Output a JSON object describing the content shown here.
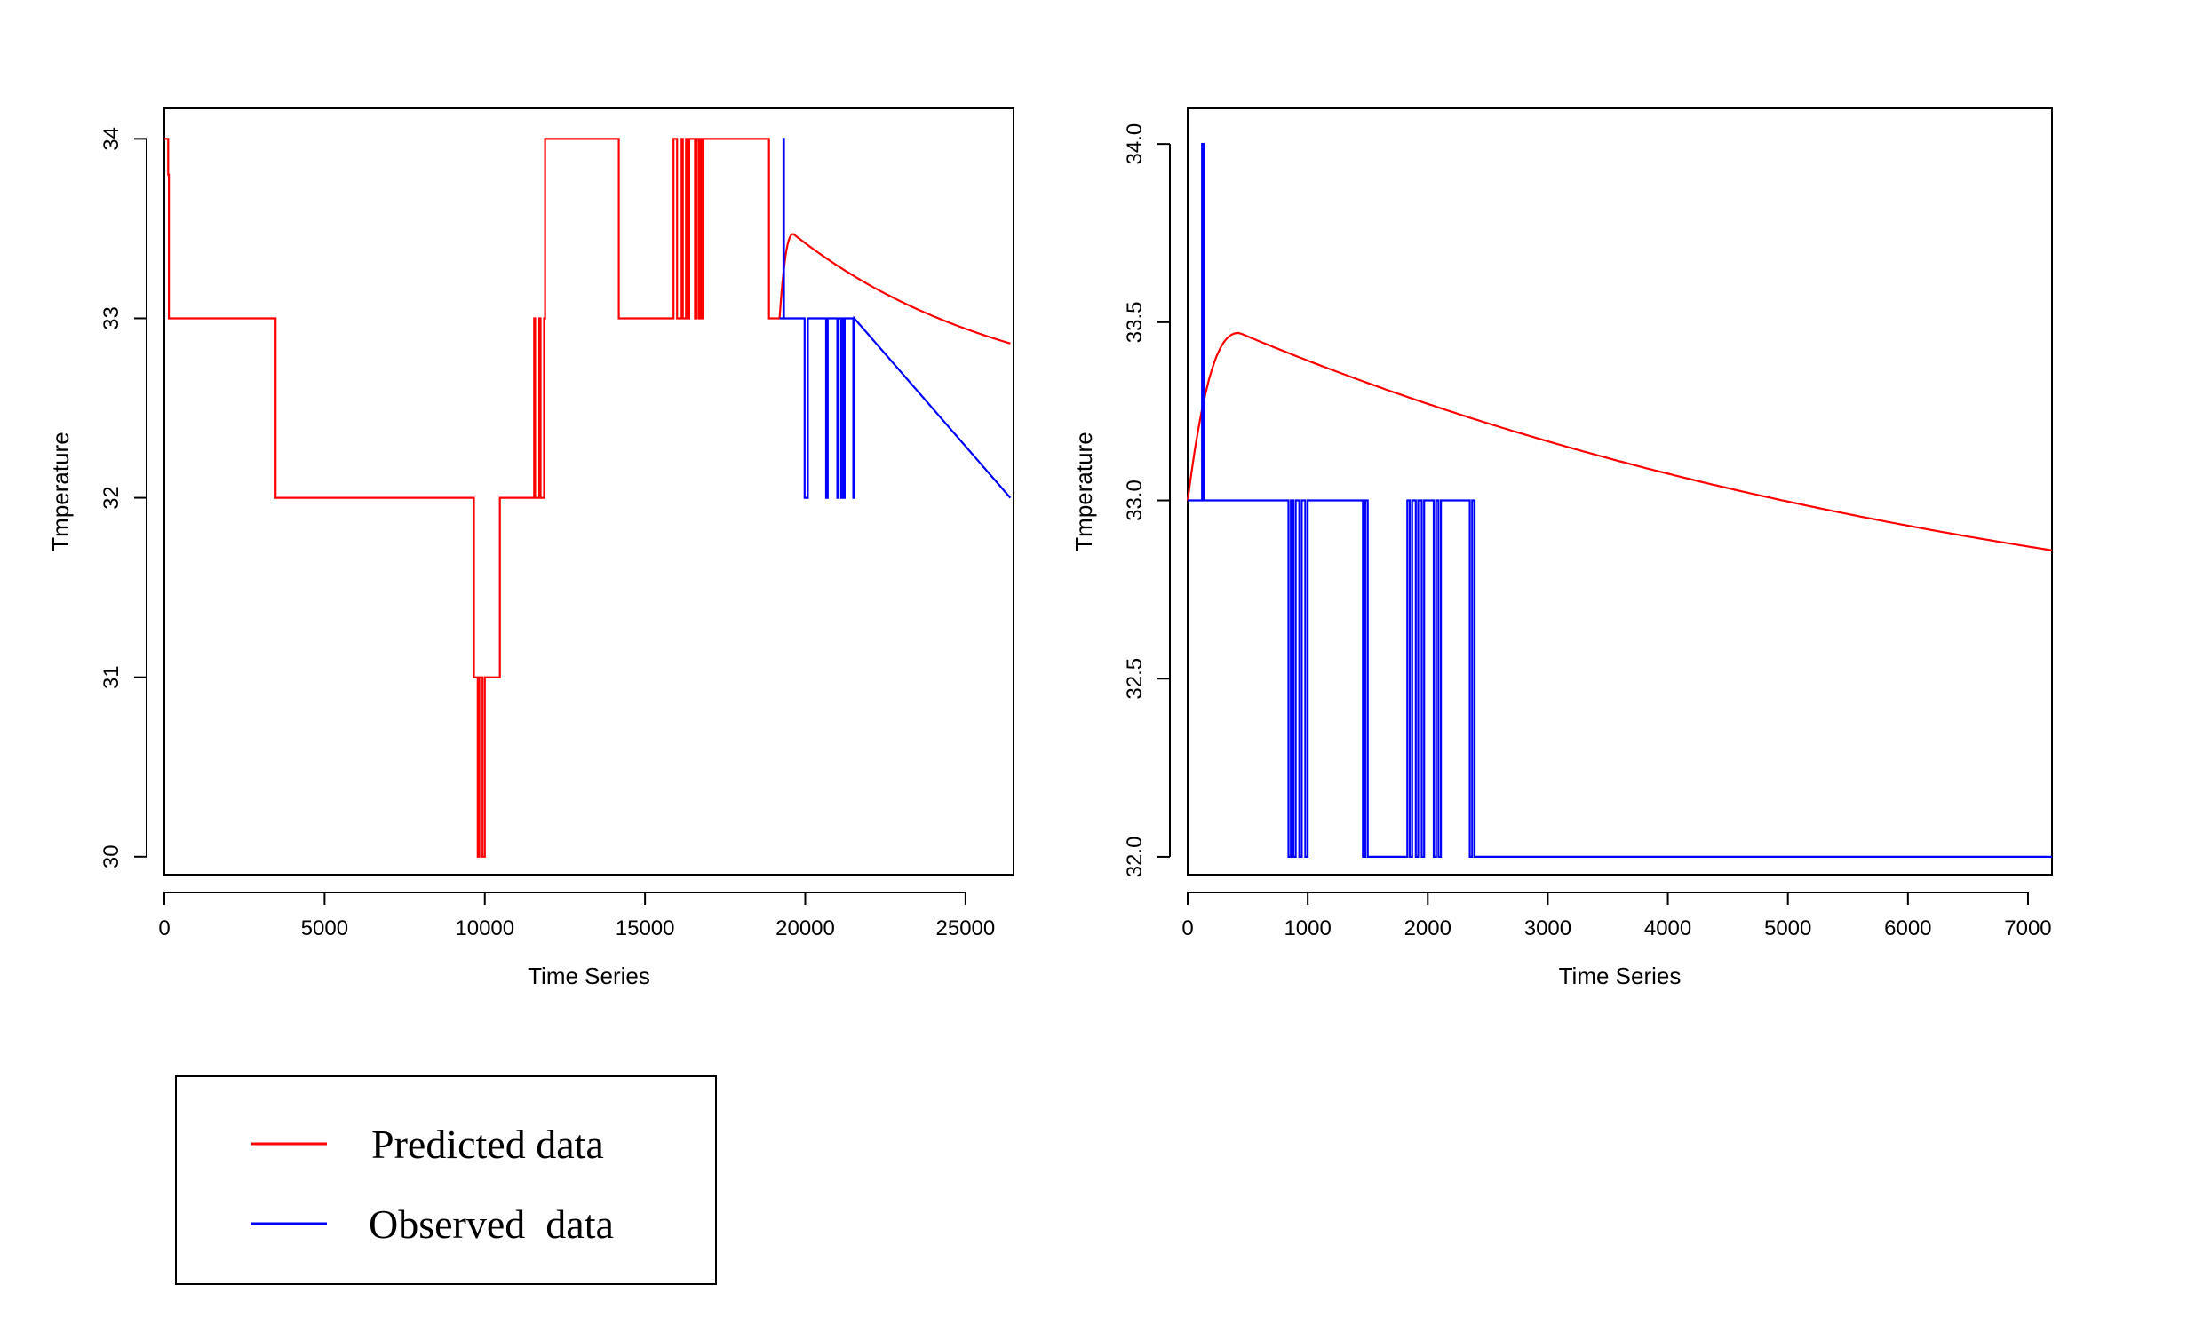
{
  "colors": {
    "predicted": "#ff0000",
    "observed": "#0000ff",
    "axis": "#000000"
  },
  "legend": {
    "placement": "bottom-left",
    "entries": [
      {
        "label": "Predicted data",
        "color": "#ff0000"
      },
      {
        "label": "Observed  data",
        "color": "#0000ff"
      }
    ]
  },
  "chart_data": [
    {
      "type": "line",
      "xlabel": "Time Series",
      "ylabel": "Tmperature",
      "xlim": [
        0,
        26500
      ],
      "ylim": [
        29.9,
        34.17
      ],
      "xticks": [
        0,
        5000,
        10000,
        15000,
        20000,
        25000
      ],
      "xtick_labels": [
        "0",
        "5000",
        "10000",
        "15000",
        "20000",
        "25000"
      ],
      "yticks": [
        30,
        31,
        32,
        33,
        34
      ],
      "ytick_labels": [
        "30",
        "31",
        "32",
        "33",
        "34"
      ],
      "grid": false,
      "series": [
        {
          "name": "Predicted data",
          "color": "#ff0000",
          "step": true,
          "x": [
            0,
            120,
            120,
            140,
            140,
            3470,
            3470,
            9660,
            9660,
            9780,
            9780,
            9830,
            9830,
            9930,
            9930,
            10000,
            10000,
            10470,
            10470,
            11540,
            11540,
            11570,
            11570,
            11700,
            11700,
            11740,
            11740,
            11850,
            11850,
            11880,
            11880,
            14180,
            14180,
            15890,
            15890,
            16000,
            16000,
            16140,
            16140,
            16180,
            16180,
            16280,
            16280,
            16320,
            16320,
            16380,
            16380,
            16560,
            16560,
            16610,
            16610,
            16680,
            16680,
            16720,
            16720,
            16770,
            16770,
            16800,
            16800,
            18870,
            18870,
            19200
          ],
          "y": [
            34,
            34,
            33.8,
            33.8,
            33,
            33,
            32,
            32,
            31,
            31,
            30,
            30,
            31,
            31,
            30,
            30,
            31,
            31,
            32,
            32,
            33,
            33,
            32,
            32,
            33,
            33,
            32,
            32,
            33,
            33,
            34,
            34,
            33,
            33,
            34,
            34,
            33,
            33,
            34,
            34,
            33,
            33,
            34,
            34,
            33,
            33,
            34,
            34,
            33,
            33,
            34,
            34,
            33,
            33,
            34,
            34,
            33,
            33,
            34,
            34,
            33,
            33
          ]
        },
        {
          "name": "Predicted data",
          "color": "#ff0000",
          "curve": {
            "start_x": 19200,
            "end_x": 26400,
            "peak_x": 19630,
            "peak_y": 33.47,
            "start_y": 33.0,
            "end_y": 32.86
          }
        },
        {
          "name": "Observed data",
          "color": "#0000ff",
          "step": true,
          "x": [
            19200,
            19320,
            19320,
            19335,
            19335,
            19980,
            19980,
            20080,
            20080,
            20650,
            20650,
            20700,
            20700,
            21000,
            21000,
            21030,
            21030,
            21120,
            21120,
            21160,
            21160,
            21200,
            21200,
            21230,
            21230,
            21500,
            21500,
            21530,
            21530,
            26400
          ],
          "y": [
            33,
            33,
            34,
            34,
            33,
            33,
            32,
            32,
            33,
            33,
            32,
            32,
            33,
            33,
            32,
            32,
            33,
            33,
            32,
            32,
            33,
            33,
            32,
            32,
            33,
            33,
            32,
            32,
            33,
            32
          ]
        }
      ]
    },
    {
      "type": "line",
      "xlabel": "Time Series",
      "ylabel": "Tmperature",
      "xlim": [
        0,
        7200
      ],
      "ylim": [
        31.95,
        34.1
      ],
      "xticks": [
        0,
        1000,
        2000,
        3000,
        4000,
        5000,
        6000,
        7000
      ],
      "xtick_labels": [
        "0",
        "1000",
        "2000",
        "3000",
        "4000",
        "5000",
        "6000",
        "7000"
      ],
      "yticks": [
        32.0,
        32.5,
        33.0,
        33.5,
        34.0
      ],
      "ytick_labels": [
        "32.0",
        "32.5",
        "33.0",
        "33.5",
        "34.0"
      ],
      "grid": false,
      "series": [
        {
          "name": "Predicted data",
          "color": "#ff0000",
          "curve": {
            "start_x": 0,
            "end_x": 7200,
            "peak_x": 430,
            "peak_y": 33.47,
            "start_y": 33.0,
            "end_y": 32.86
          }
        },
        {
          "name": "Observed data",
          "color": "#0000ff",
          "step": true,
          "x": [
            0,
            120,
            120,
            135,
            135,
            840,
            840,
            860,
            860,
            880,
            880,
            900,
            900,
            930,
            930,
            950,
            950,
            980,
            980,
            1000,
            1000,
            1460,
            1460,
            1480,
            1480,
            1500,
            1500,
            1830,
            1830,
            1850,
            1850,
            1870,
            1870,
            1900,
            1900,
            1920,
            1920,
            1950,
            1950,
            1970,
            1970,
            2050,
            2050,
            2070,
            2070,
            2090,
            2090,
            2110,
            2110,
            2350,
            2350,
            2370,
            2370,
            2390,
            2390,
            2410,
            2410,
            7200
          ],
          "y": [
            33,
            33,
            34,
            34,
            33,
            33,
            32,
            32,
            33,
            33,
            32,
            32,
            33,
            33,
            32,
            32,
            33,
            33,
            32,
            32,
            33,
            33,
            32,
            32,
            33,
            33,
            32,
            32,
            33,
            33,
            32,
            32,
            33,
            33,
            32,
            32,
            33,
            33,
            32,
            32,
            33,
            33,
            32,
            32,
            33,
            33,
            32,
            32,
            33,
            33,
            32,
            32,
            33,
            33,
            32,
            32,
            32,
            32
          ]
        }
      ]
    }
  ]
}
